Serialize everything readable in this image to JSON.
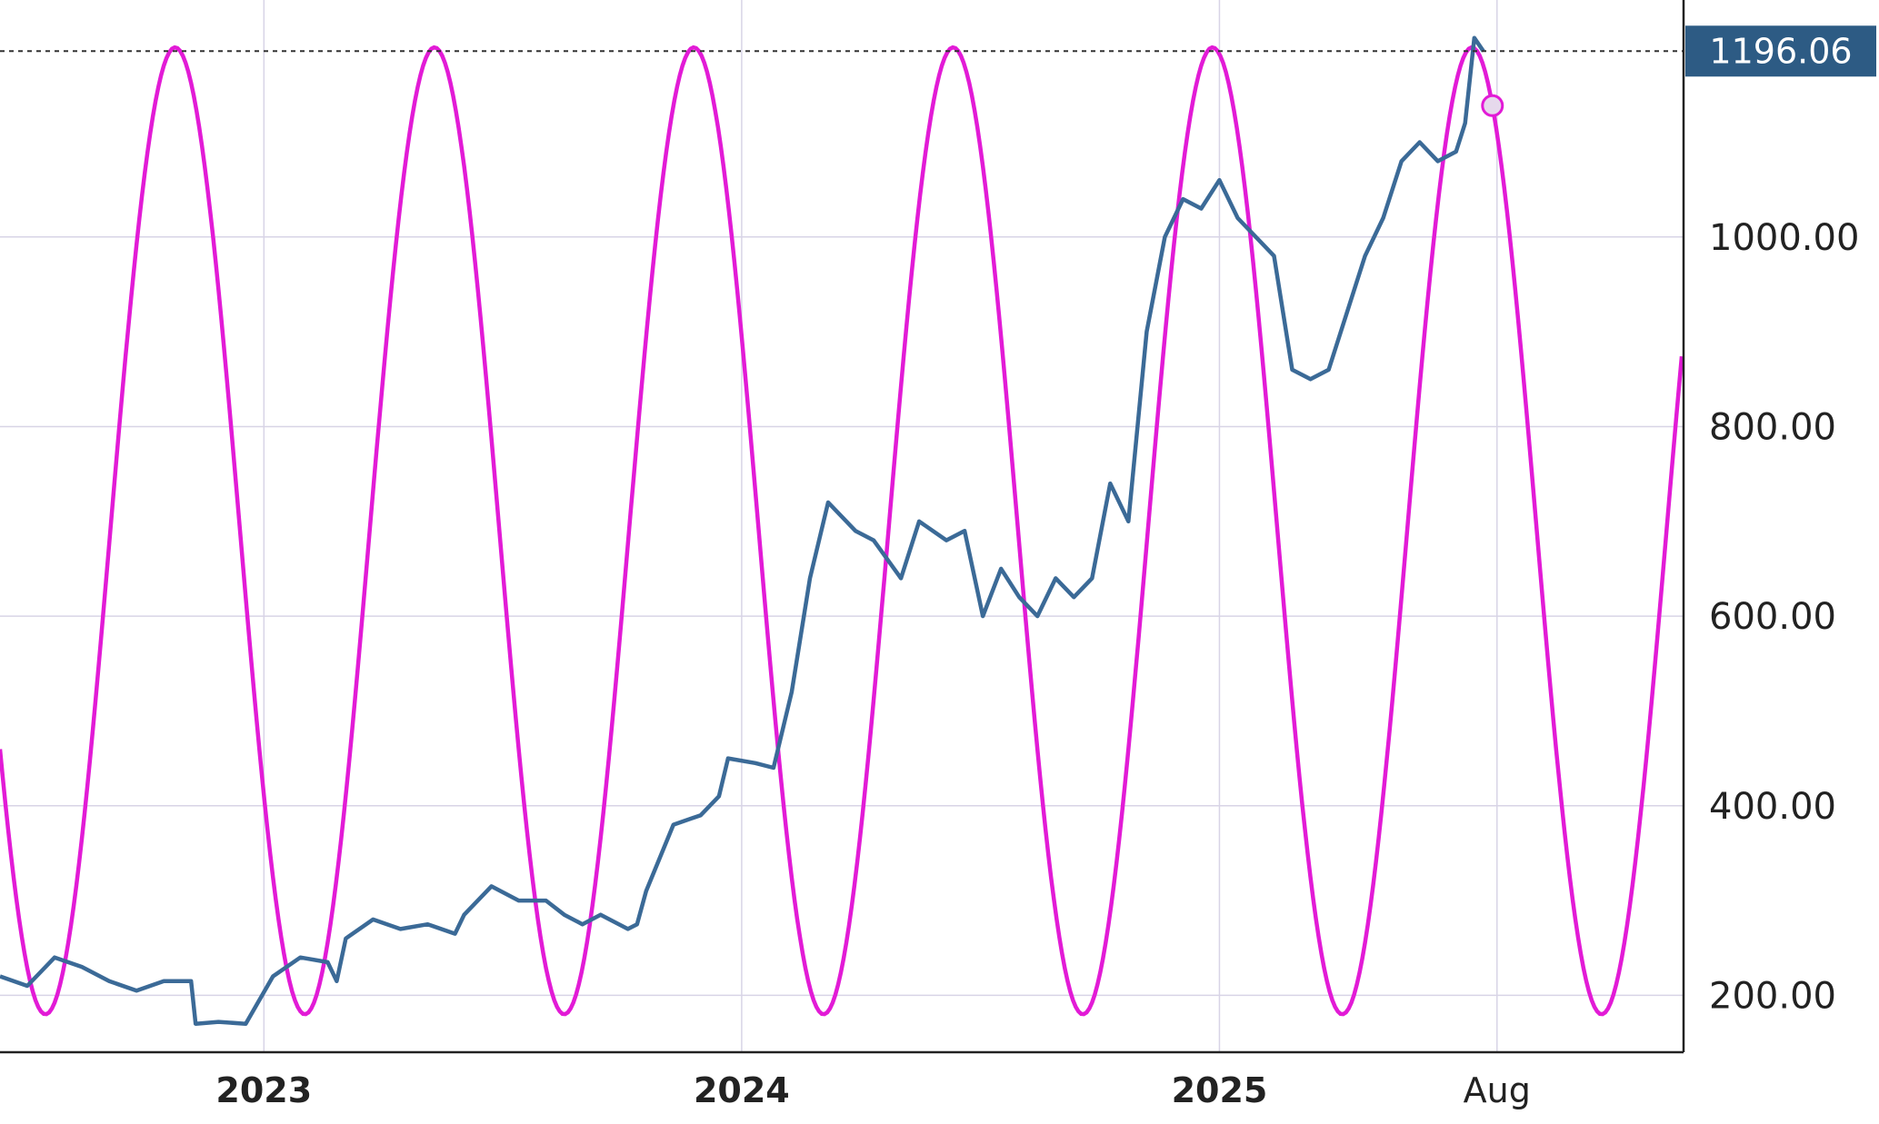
{
  "chart_data": {
    "type": "line",
    "title": "",
    "xlabel": "",
    "ylabel": "",
    "ylim": [
      140,
      1250
    ],
    "y_ticks": [
      200,
      400,
      600,
      800,
      1000
    ],
    "y_tick_labels": [
      "200.00",
      "400.00",
      "600.00",
      "800.00",
      "1000.00"
    ],
    "x_tick_labels": [
      "2023",
      "2024",
      "2025",
      "Aug"
    ],
    "grid": true,
    "last_value": 1196.06,
    "last_value_label": "1196.06",
    "colors": {
      "price": "#3b6a97",
      "sine": "#e21bd6",
      "badge": "#2d5b84"
    },
    "series": [
      {
        "values": [
          [
            0,
            220
          ],
          [
            30,
            210
          ],
          [
            60,
            240
          ],
          [
            90,
            230
          ],
          [
            120,
            215
          ],
          [
            150,
            205
          ],
          [
            180,
            215
          ],
          [
            210,
            215
          ],
          [
            215,
            170
          ],
          [
            240,
            172
          ],
          [
            270,
            170
          ],
          [
            300,
            220
          ],
          [
            330,
            240
          ],
          [
            360,
            235
          ],
          [
            370,
            215
          ],
          [
            380,
            260
          ],
          [
            410,
            280
          ],
          [
            440,
            270
          ],
          [
            470,
            275
          ],
          [
            500,
            265
          ],
          [
            510,
            285
          ],
          [
            540,
            315
          ],
          [
            570,
            300
          ],
          [
            600,
            300
          ],
          [
            620,
            285
          ],
          [
            640,
            275
          ],
          [
            660,
            285
          ],
          [
            690,
            270
          ],
          [
            700,
            275
          ],
          [
            710,
            310
          ],
          [
            740,
            380
          ],
          [
            770,
            390
          ],
          [
            790,
            410
          ],
          [
            800,
            450
          ],
          [
            830,
            445
          ],
          [
            850,
            440
          ],
          [
            870,
            520
          ],
          [
            890,
            640
          ],
          [
            910,
            720
          ],
          [
            940,
            690
          ],
          [
            960,
            680
          ],
          [
            990,
            640
          ],
          [
            1010,
            700
          ],
          [
            1040,
            680
          ],
          [
            1060,
            690
          ],
          [
            1080,
            600
          ],
          [
            1100,
            650
          ],
          [
            1120,
            620
          ],
          [
            1140,
            600
          ],
          [
            1160,
            640
          ],
          [
            1180,
            620
          ],
          [
            1200,
            640
          ],
          [
            1220,
            740
          ],
          [
            1240,
            700
          ],
          [
            1260,
            900
          ],
          [
            1280,
            1000
          ],
          [
            1300,
            1040
          ],
          [
            1320,
            1030
          ],
          [
            1340,
            1060
          ],
          [
            1360,
            1020
          ],
          [
            1380,
            1000
          ],
          [
            1400,
            980
          ],
          [
            1420,
            860
          ],
          [
            1440,
            850
          ],
          [
            1460,
            860
          ],
          [
            1480,
            920
          ],
          [
            1500,
            980
          ],
          [
            1520,
            1020
          ],
          [
            1540,
            1080
          ],
          [
            1560,
            1100
          ],
          [
            1580,
            1080
          ],
          [
            1600,
            1090
          ],
          [
            1610,
            1120
          ],
          [
            1620,
            1210
          ],
          [
            1630,
            1196
          ]
        ]
      }
    ],
    "sine": {
      "min": 180,
      "max": 1200,
      "period_days": 285,
      "first_trough_day": 50
    }
  }
}
